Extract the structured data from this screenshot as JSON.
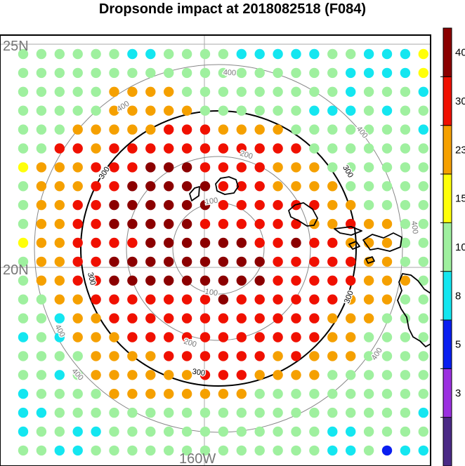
{
  "chart_data": {
    "type": "scatter",
    "title": "Dropsonde impact at 2018082518 (F084)",
    "lat_labels": [
      "25N",
      "20N"
    ],
    "lon_labels": [
      "160W"
    ],
    "range_rings": [
      {
        "label": "100",
        "color": "#888888",
        "emphasis": false
      },
      {
        "label": "200",
        "color": "#888888",
        "emphasis": false
      },
      {
        "label": "300",
        "color": "#000000",
        "emphasis": true
      },
      {
        "label": "400",
        "color": "#888888",
        "emphasis": false
      }
    ],
    "colorbar": {
      "tick_labels": [
        "3",
        "5",
        "8",
        "10",
        "15",
        "23",
        "30",
        "40"
      ],
      "bins": [
        "#4b2a86",
        "#9b30e0",
        "#0a1ef0",
        "#14e6f0",
        "#9ff09f",
        "#ffff0a",
        "#f5a000",
        "#f01000",
        "#8b0000"
      ]
    },
    "grid_rows": [
      "4444443344443333344333542",
      "4444444444444444443333542",
      "4444466664444444443444322",
      "4444466666444444333434423",
      "4446666677766664444444333",
      "4477677777777777444444443",
      "5666777888777766644444432",
      "4666778888877766664444443",
      "4667788888877777766444444",
      "4667788888777777667664444",
      "5667777888888778776664444",
      "4667788888888877777664444",
      "4667788888888877777666444",
      "4466777777787777776664444",
      "4436677777777777766644444",
      "3436667777777777766444444",
      "4444666677777767666444433",
      "4434666666777666644444443",
      "3444466666666444444444443",
      "3344444444444444444444333",
      "3443344444444444433444433",
      "4433444444444444433423344"
    ]
  }
}
